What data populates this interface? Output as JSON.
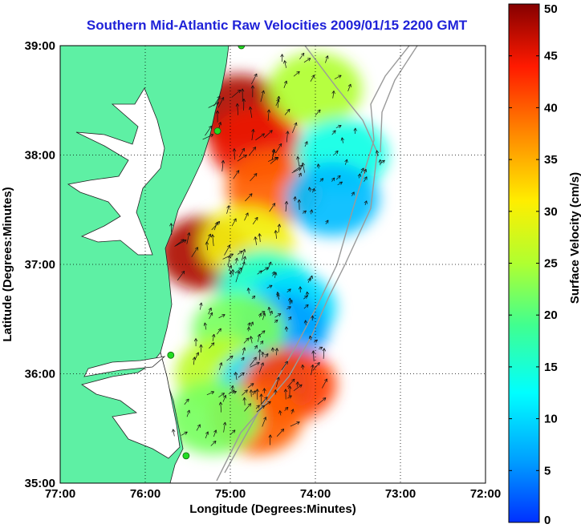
{
  "title": "Southern Mid-Atlantic Raw Velocities 2009/01/15 2200 GMT",
  "chart_data": {
    "type": "heatmap",
    "title": "Southern Mid-Atlantic Raw Velocities 2009/01/15 2200 GMT",
    "xlabel": "Longitude (Degrees:Minutes)",
    "ylabel": "Latitude (Degrees:Minutes)",
    "xlim": [
      -77,
      -72
    ],
    "ylim": [
      35,
      39
    ],
    "xticks": [
      "77:00",
      "76:00",
      "75:00",
      "74:00",
      "73:00",
      "72:00"
    ],
    "yticks": [
      "35:00",
      "36:00",
      "37:00",
      "38:00",
      "39:00"
    ],
    "grid": "dotted",
    "colorbar": {
      "label": "Surface Velocity (cm/s)",
      "range": [
        0,
        50
      ],
      "ticks": [
        "0",
        "5",
        "10",
        "15",
        "20",
        "25",
        "30",
        "35",
        "40",
        "45",
        "50"
      ],
      "colormap": "jet"
    },
    "velocity_regions": [
      {
        "lon": -74.9,
        "lat": 38.4,
        "speed": 48
      },
      {
        "lon": -74.7,
        "lat": 38.1,
        "speed": 45
      },
      {
        "lon": -74.5,
        "lat": 37.7,
        "speed": 40
      },
      {
        "lon": -74.0,
        "lat": 38.6,
        "speed": 25
      },
      {
        "lon": -73.7,
        "lat": 38.0,
        "speed": 14
      },
      {
        "lon": -73.8,
        "lat": 37.6,
        "speed": 8
      },
      {
        "lon": -75.3,
        "lat": 37.1,
        "speed": 48
      },
      {
        "lon": -74.8,
        "lat": 37.2,
        "speed": 30
      },
      {
        "lon": -74.6,
        "lat": 36.8,
        "speed": 15
      },
      {
        "lon": -74.3,
        "lat": 36.6,
        "speed": 10
      },
      {
        "lon": -74.4,
        "lat": 36.4,
        "speed": 6
      },
      {
        "lon": -74.9,
        "lat": 36.4,
        "speed": 22
      },
      {
        "lon": -75.1,
        "lat": 36.0,
        "speed": 26
      },
      {
        "lon": -74.6,
        "lat": 35.9,
        "speed": 10
      },
      {
        "lon": -74.3,
        "lat": 35.9,
        "speed": 42
      },
      {
        "lon": -74.7,
        "lat": 35.6,
        "speed": 40
      },
      {
        "lon": -75.2,
        "lat": 35.6,
        "speed": 22
      }
    ],
    "station_sites": [
      {
        "lon": -74.87,
        "lat": 39.0
      },
      {
        "lon": -75.15,
        "lat": 38.22
      },
      {
        "lon": -75.7,
        "lat": 36.17
      },
      {
        "lon": -75.52,
        "lat": 35.25
      }
    ]
  }
}
